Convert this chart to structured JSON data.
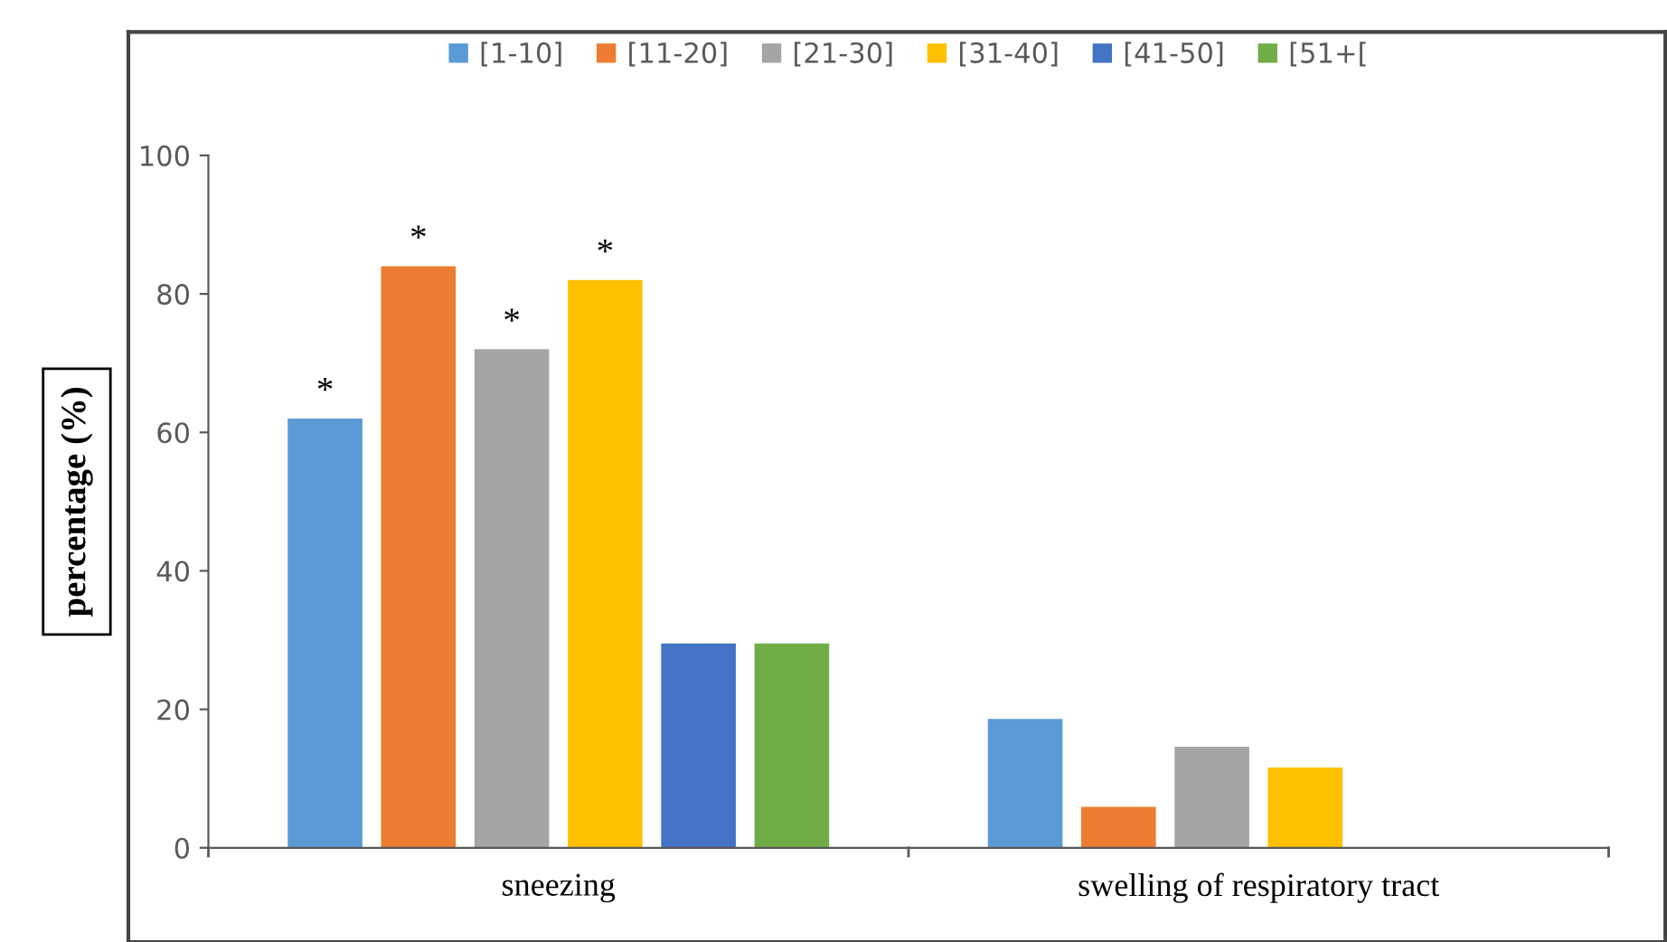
{
  "chart_data": {
    "type": "bar",
    "ylabel": "percentage (%)",
    "categories": [
      "sneezing",
      "swelling of respiratory tract"
    ],
    "series": [
      {
        "name": "[1-10]",
        "color": "#5b9bd5",
        "values": [
          62,
          18.6
        ],
        "value_labels": [
          "*",
          null
        ]
      },
      {
        "name": "[11-20]",
        "color": "#ed7d31",
        "values": [
          84,
          5.9
        ],
        "value_labels": [
          "*",
          null
        ]
      },
      {
        "name": "[21-30]",
        "color": "#a5a5a5",
        "values": [
          72,
          14.6
        ],
        "value_labels": [
          "*",
          null
        ]
      },
      {
        "name": "[31-40]",
        "color": "#ffc000",
        "values": [
          82,
          11.6
        ],
        "value_labels": [
          "*",
          null
        ]
      },
      {
        "name": "[41-50]",
        "color": "#4472c4",
        "values": [
          29.5,
          0
        ]
      },
      {
        "name": "[51+[",
        "color": "#70ad47",
        "values": [
          29.5,
          0
        ]
      }
    ],
    "ylim": [
      0,
      100
    ],
    "yticks": [
      0,
      20,
      40,
      60,
      80,
      100
    ],
    "grid": false,
    "legend": "top"
  }
}
